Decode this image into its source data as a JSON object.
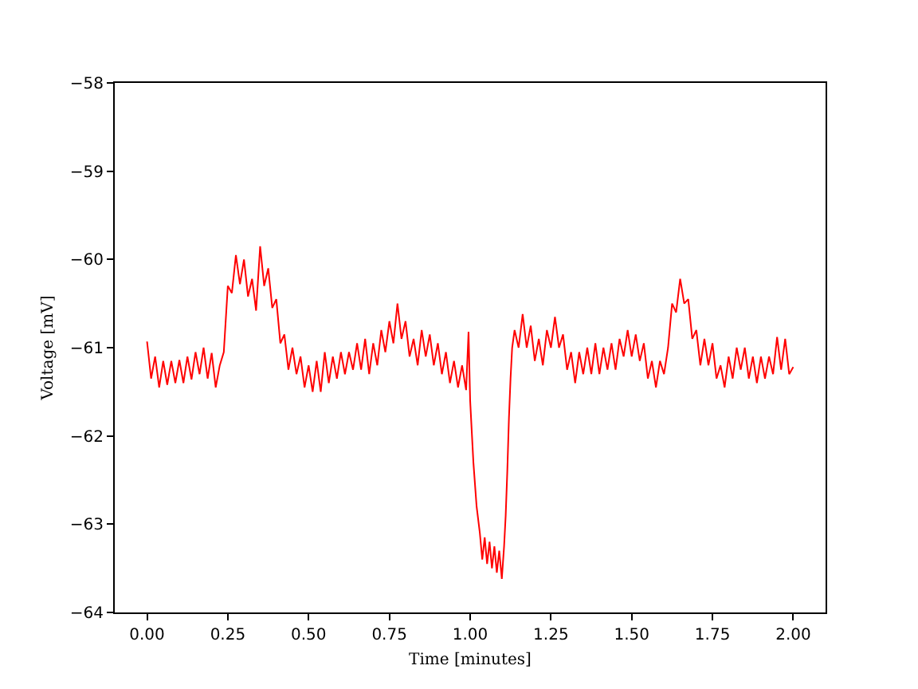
{
  "chart_data": {
    "type": "line",
    "xlabel": "Time [minutes]",
    "ylabel": "Voltage [mV]",
    "line_style": "solid",
    "xlim": [
      -0.1,
      2.1
    ],
    "ylim": [
      -64,
      -58
    ],
    "xticks": [
      {
        "value": 0,
        "label": "0.00"
      },
      {
        "value": 0.25,
        "label": "0.25"
      },
      {
        "value": 0.5,
        "label": "0.50"
      },
      {
        "value": 0.75,
        "label": "0.75"
      },
      {
        "value": 1,
        "label": "1.00"
      },
      {
        "value": 1.25,
        "label": "1.25"
      },
      {
        "value": 1.5,
        "label": "1.50"
      },
      {
        "value": 1.75,
        "label": "1.75"
      },
      {
        "value": 2,
        "label": "2.00"
      }
    ],
    "yticks": [
      -64,
      -63,
      -62,
      -61,
      -60,
      -59,
      -58
    ],
    "x": [
      0,
      0.0125,
      0.025,
      0.0375,
      0.05,
      0.0625,
      0.075,
      0.0875,
      0.1,
      0.1125,
      0.125,
      0.1375,
      0.15,
      0.1625,
      0.175,
      0.1875,
      0.2,
      0.2125,
      0.225,
      0.2375,
      0.25,
      0.2625,
      0.275,
      0.2875,
      0.3,
      0.3125,
      0.325,
      0.3375,
      0.35,
      0.3625,
      0.375,
      0.3875,
      0.4,
      0.4125,
      0.425,
      0.4375,
      0.45,
      0.4625,
      0.475,
      0.4875,
      0.5,
      0.5125,
      0.525,
      0.5375,
      0.55,
      0.5625,
      0.575,
      0.5875,
      0.6,
      0.6125,
      0.625,
      0.6375,
      0.65,
      0.6625,
      0.675,
      0.6875,
      0.7,
      0.7125,
      0.725,
      0.7375,
      0.75,
      0.7625,
      0.775,
      0.7875,
      0.8,
      0.8125,
      0.825,
      0.8375,
      0.85,
      0.8625,
      0.875,
      0.8875,
      0.9,
      0.9125,
      0.925,
      0.9375,
      0.95,
      0.9625,
      0.975,
      0.9875,
      0.995,
      1.0,
      1.005,
      1.01,
      1.02,
      1.03,
      1.0375,
      1.045,
      1.0525,
      1.06,
      1.0675,
      1.075,
      1.0825,
      1.09,
      1.098,
      1.105,
      1.11,
      1.115,
      1.12,
      1.125,
      1.13,
      1.1375,
      1.15,
      1.1625,
      1.175,
      1.1875,
      1.2,
      1.2125,
      1.225,
      1.2375,
      1.25,
      1.2625,
      1.275,
      1.2875,
      1.3,
      1.3125,
      1.325,
      1.3375,
      1.35,
      1.3625,
      1.375,
      1.3875,
      1.4,
      1.4125,
      1.425,
      1.4375,
      1.45,
      1.4625,
      1.475,
      1.4875,
      1.5,
      1.5125,
      1.525,
      1.5375,
      1.55,
      1.5625,
      1.575,
      1.5875,
      1.6,
      1.6125,
      1.625,
      1.6375,
      1.65,
      1.6625,
      1.675,
      1.6875,
      1.7,
      1.7125,
      1.725,
      1.7375,
      1.75,
      1.7625,
      1.775,
      1.7875,
      1.8,
      1.8125,
      1.825,
      1.8375,
      1.85,
      1.8625,
      1.875,
      1.8875,
      1.9,
      1.9125,
      1.925,
      1.9375,
      1.95,
      1.9625,
      1.975,
      1.9875,
      2.0
    ],
    "series": [
      {
        "color": "#ff0000",
        "values": [
          -60.93,
          -61.35,
          -61.1,
          -61.45,
          -61.15,
          -61.42,
          -61.15,
          -61.4,
          -61.14,
          -61.4,
          -61.1,
          -61.36,
          -61.05,
          -61.3,
          -61.0,
          -61.35,
          -61.06,
          -61.45,
          -61.2,
          -61.05,
          -60.3,
          -60.38,
          -59.95,
          -60.28,
          -60.0,
          -60.42,
          -60.22,
          -60.58,
          -59.85,
          -60.3,
          -60.1,
          -60.55,
          -60.45,
          -60.95,
          -60.85,
          -61.25,
          -61.0,
          -61.3,
          -61.1,
          -61.45,
          -61.2,
          -61.5,
          -61.15,
          -61.5,
          -61.05,
          -61.4,
          -61.1,
          -61.35,
          -61.05,
          -61.3,
          -61.05,
          -61.25,
          -60.95,
          -61.25,
          -60.9,
          -61.3,
          -60.95,
          -61.2,
          -60.8,
          -61.05,
          -60.7,
          -60.95,
          -60.5,
          -60.9,
          -60.7,
          -61.1,
          -60.9,
          -61.2,
          -60.8,
          -61.1,
          -60.85,
          -61.2,
          -60.95,
          -61.3,
          -61.05,
          -61.4,
          -61.15,
          -61.45,
          -61.2,
          -61.48,
          -60.82,
          -61.6,
          -61.95,
          -62.3,
          -62.8,
          -63.1,
          -63.4,
          -63.15,
          -63.45,
          -63.2,
          -63.5,
          -63.25,
          -63.55,
          -63.3,
          -63.62,
          -63.25,
          -62.9,
          -62.4,
          -61.8,
          -61.35,
          -61.0,
          -60.8,
          -61.0,
          -60.62,
          -61.0,
          -60.75,
          -61.15,
          -60.9,
          -61.2,
          -60.8,
          -61.0,
          -60.65,
          -61.0,
          -60.85,
          -61.25,
          -61.05,
          -61.4,
          -61.05,
          -61.3,
          -61.0,
          -61.3,
          -60.95,
          -61.3,
          -61.0,
          -61.25,
          -60.95,
          -61.25,
          -60.9,
          -61.1,
          -60.8,
          -61.1,
          -60.85,
          -61.15,
          -60.95,
          -61.35,
          -61.15,
          -61.45,
          -61.15,
          -61.3,
          -61.0,
          -60.5,
          -60.6,
          -60.22,
          -60.5,
          -60.45,
          -60.9,
          -60.8,
          -61.2,
          -60.9,
          -61.2,
          -60.95,
          -61.35,
          -61.2,
          -61.45,
          -61.1,
          -61.35,
          -61.0,
          -61.25,
          -61.0,
          -61.35,
          -61.1,
          -61.4,
          -61.1,
          -61.35,
          -61.1,
          -61.3,
          -60.88,
          -61.25,
          -60.9,
          -61.3,
          -61.22
        ]
      }
    ]
  }
}
